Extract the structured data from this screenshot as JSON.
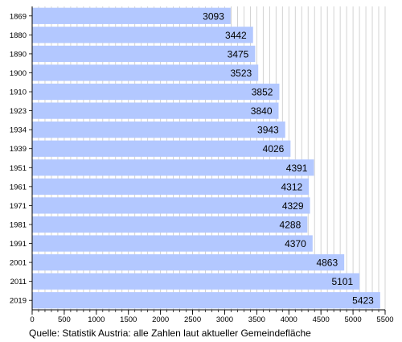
{
  "chart_data": {
    "type": "bar",
    "orientation": "horizontal",
    "categories": [
      "1869",
      "1880",
      "1890",
      "1900",
      "1910",
      "1923",
      "1934",
      "1939",
      "1951",
      "1961",
      "1971",
      "1981",
      "1991",
      "2001",
      "2011",
      "2019"
    ],
    "values": [
      3093,
      3442,
      3475,
      3523,
      3852,
      3840,
      3943,
      4026,
      4391,
      4312,
      4329,
      4288,
      4370,
      4863,
      5101,
      5423
    ],
    "xlim": [
      0,
      5500
    ],
    "x_ticks": [
      0,
      500,
      1000,
      1500,
      2000,
      2500,
      3000,
      3500,
      4000,
      4500,
      5000,
      5500
    ],
    "grid": "vertical",
    "bar_color": "#b3c8ff",
    "data_labels": true
  },
  "source_note": "Quelle: Statistik Austria: alle Zahlen laut aktueller Gemeindefläche"
}
